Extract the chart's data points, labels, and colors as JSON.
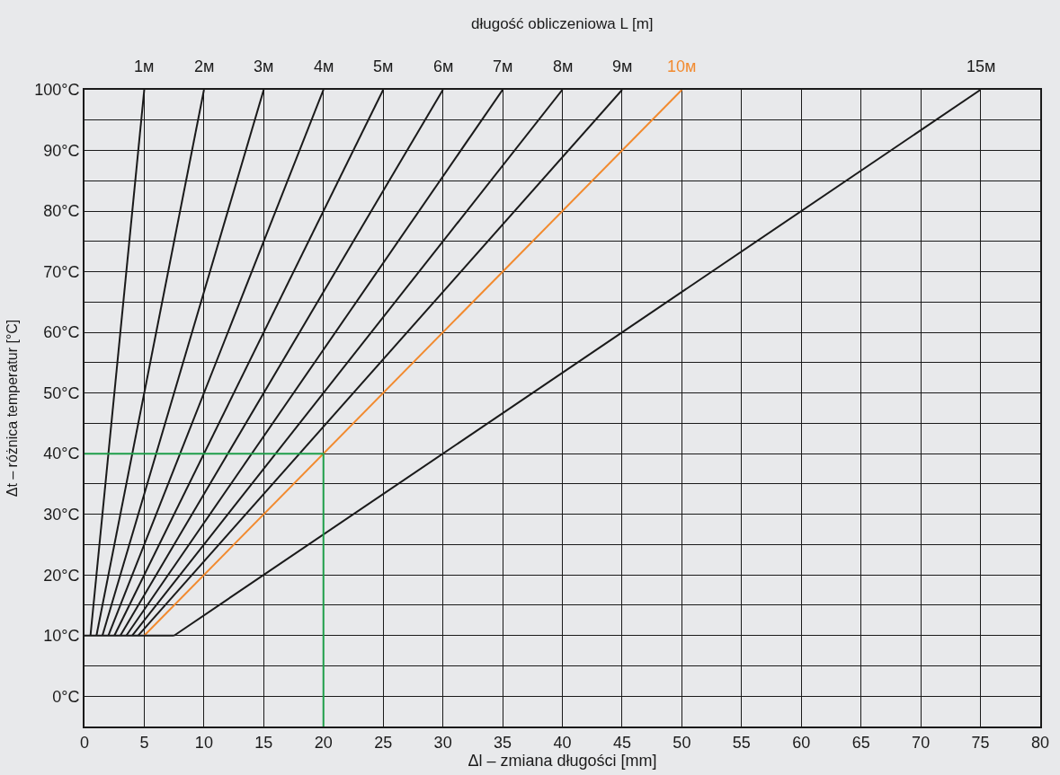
{
  "chart_data": {
    "type": "line",
    "xlabel": "Δl – zmiana długości [mm]",
    "ylabel": "Δt – różnica temperatur [°C]",
    "annotations": [
      "długość obliczeniowa L [m]"
    ],
    "xlim": [
      0,
      80
    ],
    "xticks": [
      0,
      5,
      10,
      15,
      20,
      25,
      30,
      35,
      40,
      45,
      50,
      55,
      60,
      65,
      70,
      75,
      80
    ],
    "ylim": [
      -5,
      100
    ],
    "yticks": [
      {
        "value": -5,
        "label": null
      },
      "0°C",
      {
        "value": 5,
        "label": null
      },
      {
        "value": 10,
        "label": "10°C"
      },
      {
        "value": 15,
        "label": null
      },
      {
        "value": 20,
        "label": "20°C"
      },
      {
        "value": 25,
        "label": null
      },
      {
        "value": 30,
        "label": "30°C"
      },
      {
        "value": 35,
        "label": null
      },
      {
        "value": 40,
        "label": "40°C"
      },
      {
        "value": 45,
        "label": null
      },
      {
        "value": 50,
        "label": "50°C"
      },
      {
        "value": 55,
        "label": null
      },
      {
        "value": 60,
        "label": "60°C"
      },
      {
        "value": 65,
        "label": null
      },
      {
        "value": 70,
        "label": "70°C"
      },
      {
        "value": 75,
        "label": null
      },
      {
        "value": 80,
        "label": "80°C"
      },
      {
        "value": 85,
        "label": null
      },
      {
        "value": 90,
        "label": "90°C"
      },
      {
        "value": 95,
        "label": null
      },
      {
        "value": 100,
        "label": "100°C"
      }
    ],
    "grid": true,
    "marker": "none",
    "line_style": "solid",
    "series": [
      {
        "name": "1м",
        "color": "#1a1a1a",
        "x": [
          0.5,
          5
        ],
        "values": [
          10,
          100
        ]
      },
      {
        "name": "2м",
        "color": "#1a1a1a",
        "x": [
          1,
          10
        ],
        "values": [
          10,
          100
        ]
      },
      {
        "name": "3м",
        "color": "#1a1a1a",
        "x": [
          1.5,
          15
        ],
        "values": [
          10,
          100
        ]
      },
      {
        "name": "4м",
        "color": "#1a1a1a",
        "x": [
          2,
          20
        ],
        "values": [
          10,
          100
        ]
      },
      {
        "name": "5м",
        "color": "#1a1a1a",
        "x": [
          2.5,
          25
        ],
        "values": [
          10,
          100
        ]
      },
      {
        "name": "6м",
        "color": "#1a1a1a",
        "x": [
          3,
          30
        ],
        "values": [
          10,
          100
        ]
      },
      {
        "name": "7м",
        "color": "#1a1a1a",
        "x": [
          3.5,
          35
        ],
        "values": [
          10,
          100
        ]
      },
      {
        "name": "8м",
        "color": "#1a1a1a",
        "x": [
          4,
          40
        ],
        "values": [
          10,
          100
        ]
      },
      {
        "name": "9м",
        "color": "#1a1a1a",
        "x": [
          4.5,
          45
        ],
        "values": [
          10,
          100
        ]
      },
      {
        "name": "10м",
        "color": "#f28a2e",
        "x": [
          5,
          50
        ],
        "values": [
          10,
          100
        ]
      },
      {
        "name": "15м",
        "color": "#1a1a1a",
        "x": [
          7.5,
          75
        ],
        "values": [
          10,
          100
        ]
      },
      {
        "color": "#1a1a1a",
        "x": [
          0,
          7.5
        ],
        "values": [
          10,
          10
        ]
      },
      {
        "color": "#1e9e4a",
        "x": [
          0,
          20,
          20
        ],
        "values": [
          40,
          40,
          -5
        ]
      }
    ]
  }
}
